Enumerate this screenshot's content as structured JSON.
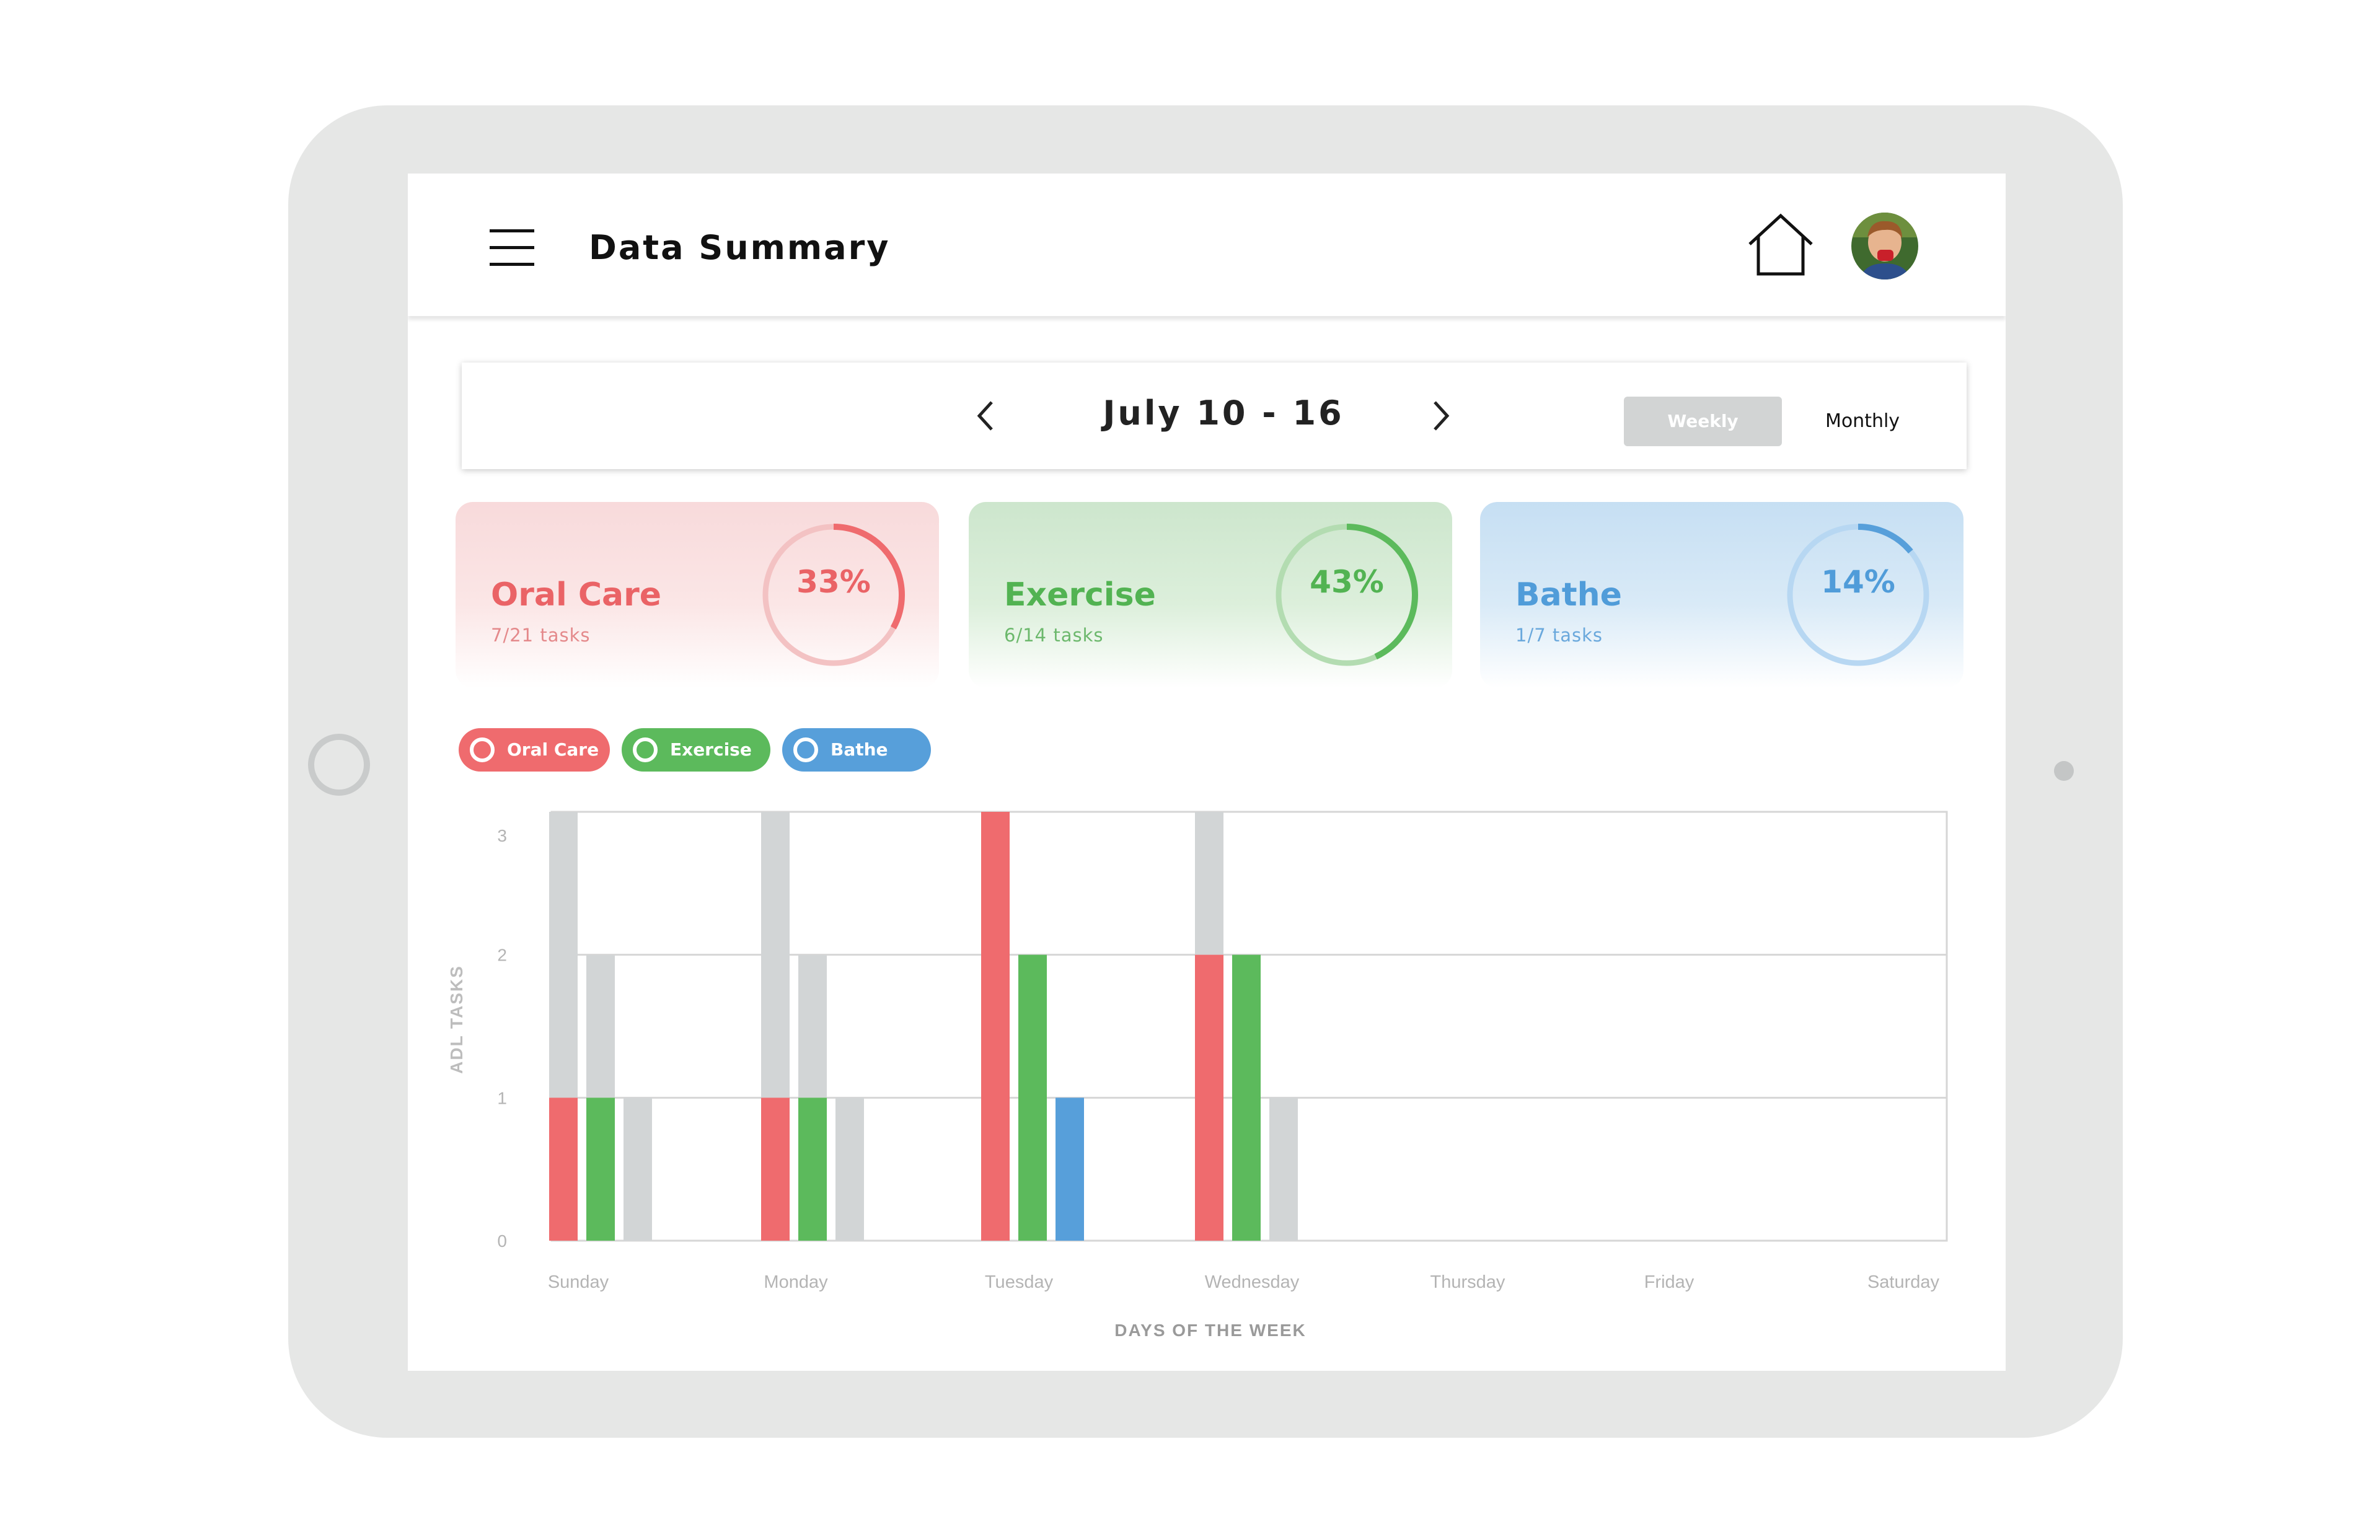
{
  "header": {
    "title": "Data Summary"
  },
  "date_nav": {
    "range": "July 10 - 16",
    "weekly_label": "Weekly",
    "monthly_label": "Monthly"
  },
  "cards": [
    {
      "name": "Oral Care",
      "tasks": "7/21 tasks",
      "percent_label": "33%",
      "percent": 0.33,
      "color": "#ef6b6e",
      "text_color": "#ea6366",
      "sub_color": "#e4898b",
      "track_color": "#f3c2c3"
    },
    {
      "name": "Exercise",
      "tasks": "6/14 tasks",
      "percent_label": "43%",
      "percent": 0.43,
      "color": "#5cba5c",
      "text_color": "#52b352",
      "sub_color": "#6cb86c",
      "track_color": "#b3dcb1"
    },
    {
      "name": "Bathe",
      "tasks": "1/7 tasks",
      "percent_label": "14%",
      "percent": 0.14,
      "color": "#579fda",
      "text_color": "#509cd9",
      "sub_color": "#6aa8dc",
      "track_color": "#b7d7f2"
    }
  ],
  "legend": [
    {
      "label": "Oral Care",
      "color": "#ef6b6e"
    },
    {
      "label": "Exercise",
      "color": "#5cba5c"
    },
    {
      "label": "Bathe",
      "color": "#579fda"
    }
  ],
  "chart_data": {
    "type": "bar",
    "stacked_against_goal": true,
    "categories": [
      "Sunday",
      "Monday",
      "Tuesday",
      "Wednesday",
      "Thursday",
      "Friday",
      "Saturday"
    ],
    "series": [
      {
        "name": "Oral Care",
        "color": "#ef6b6e",
        "values": [
          1,
          1,
          3,
          2,
          0,
          0,
          0
        ],
        "goal": 3
      },
      {
        "name": "Exercise",
        "color": "#5cba5c",
        "values": [
          1,
          1,
          2,
          2,
          0,
          0,
          0
        ],
        "goal": 2
      },
      {
        "name": "Bathe",
        "color": "#579fda",
        "values": [
          0,
          0,
          1,
          0,
          0,
          0,
          0
        ],
        "goal": 1
      }
    ],
    "remaining_color": "#d2d5d6",
    "xlabel": "DAYS OF THE WEEK",
    "ylabel": "ADL TASKS",
    "ylim": [
      0,
      3
    ],
    "yticks": [
      0,
      1,
      2,
      3
    ],
    "grid": true
  }
}
